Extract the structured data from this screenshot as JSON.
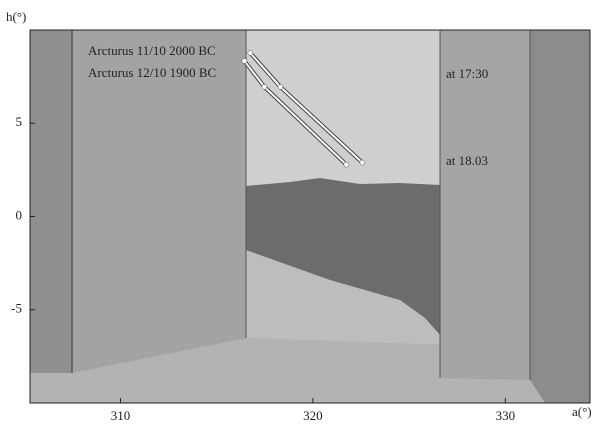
{
  "chart_data": {
    "type": "line",
    "x_label": "a(°)",
    "y_label": "h(°)",
    "xlim": [
      305.3,
      334.4
    ],
    "ylim": [
      -10,
      10
    ],
    "xticks": [
      310,
      320,
      330
    ],
    "yticks": [
      -5,
      0,
      5
    ],
    "series": [
      {
        "name": "Arcturus 11/10 2000 BC",
        "color": "#ffffff",
        "x": [
          316.75,
          318.31,
          322.57
        ],
        "y": [
          8.77,
          6.95,
          2.89
        ]
      },
      {
        "name": "Arcturus 12/10 1900 BC",
        "color": "#ffffff",
        "x": [
          316.44,
          317.48,
          321.74
        ],
        "y": [
          8.34,
          6.95,
          2.78
        ]
      }
    ],
    "annotations": [
      {
        "text": "at 17:30"
      },
      {
        "text": "at 18.03"
      }
    ]
  }
}
